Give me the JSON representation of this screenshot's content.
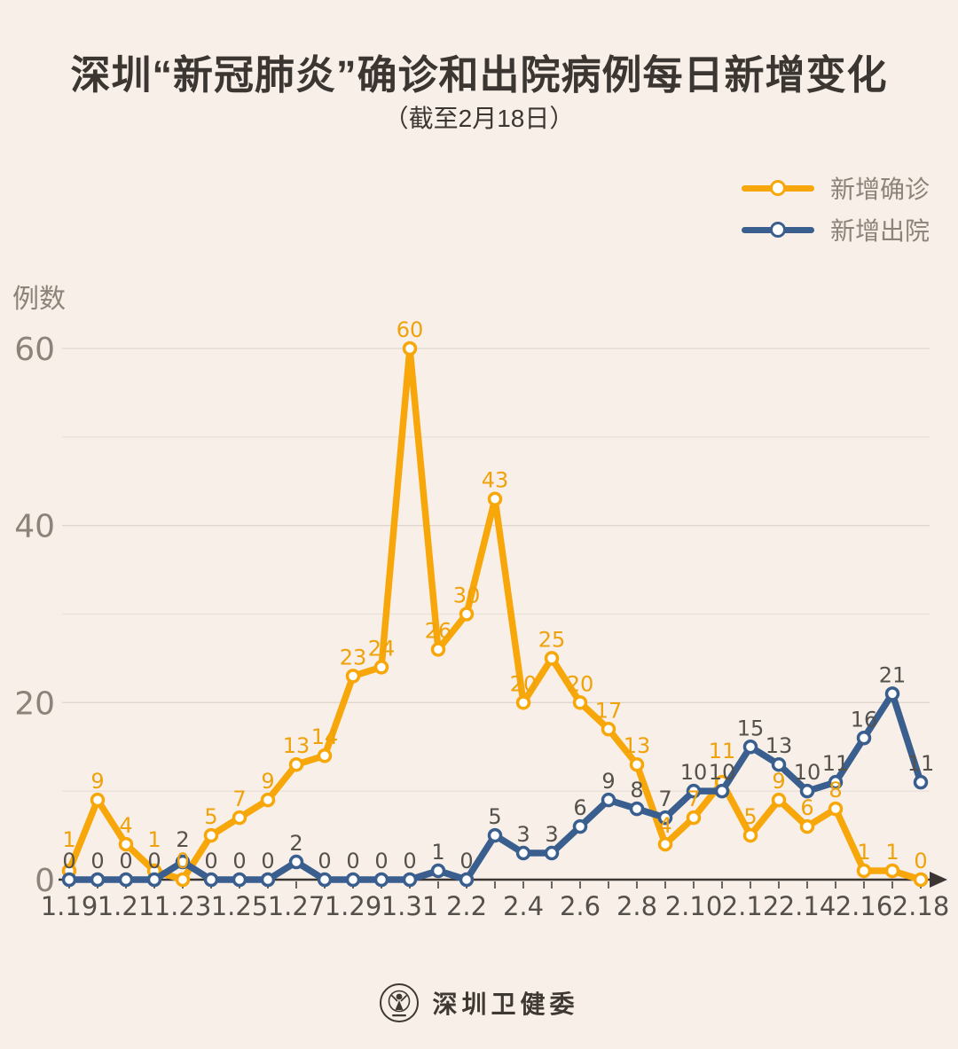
{
  "title": "深圳“新冠肺炎”确诊和出院病例每日新增变化",
  "subtitle": "（截至2月18日）",
  "footer": {
    "source_label": "深圳卫健委",
    "logo_icon": "shenzhen-health-commission-emblem"
  },
  "colors": {
    "background": "#F8EFE8",
    "confirmed": "#F7A70A",
    "discharged": "#3A5F8E",
    "confirmed_label": "#F0A20B",
    "discharged_label": "#55514D",
    "grid_major": "#E0D6CE",
    "grid_minor": "#EAE1DA",
    "axis": "#3B3632",
    "x_tick_label": "#55504B",
    "y_tick_label": "#8C8379",
    "title_text": "#3B3632",
    "legend_text": "#8C8379"
  },
  "chart_data": {
    "type": "line",
    "title": "深圳“新冠肺炎”确诊和出院病例每日新增变化",
    "subtitle": "（截至2月18日）",
    "xlabel": "",
    "ylabel": "例数",
    "ylim": [
      0,
      60
    ],
    "y_ticks": [
      0,
      20,
      40,
      60
    ],
    "grid_step": 10,
    "x_label_every": 2,
    "grid": "on",
    "legend_position": "top-right",
    "marker": "open-circle",
    "categories": [
      "1.19",
      "1.20",
      "1.21",
      "1.22",
      "1.23",
      "1.24",
      "1.25",
      "1.26",
      "1.27",
      "1.28",
      "1.29",
      "1.30",
      "1.31",
      "2.1",
      "2.2",
      "2.3",
      "2.4",
      "2.5",
      "2.6",
      "2.7",
      "2.8",
      "2.9",
      "2.10",
      "2.11",
      "2.12",
      "2.13",
      "2.14",
      "2.15",
      "2.16",
      "2.17",
      "2.18"
    ],
    "series": [
      {
        "name": "新增确诊",
        "color_key": "confirmed",
        "values": [
          1,
          9,
          4,
          1,
          0,
          5,
          7,
          9,
          13,
          14,
          23,
          24,
          60,
          26,
          30,
          43,
          20,
          25,
          20,
          17,
          13,
          4,
          7,
          11,
          5,
          9,
          6,
          8,
          1,
          1,
          0
        ]
      },
      {
        "name": "新增出院",
        "color_key": "discharged",
        "values": [
          0,
          0,
          0,
          0,
          2,
          0,
          0,
          0,
          2,
          0,
          0,
          0,
          0,
          1,
          0,
          5,
          3,
          3,
          6,
          9,
          8,
          7,
          10,
          10,
          15,
          13,
          10,
          11,
          16,
          21,
          11
        ]
      }
    ]
  }
}
